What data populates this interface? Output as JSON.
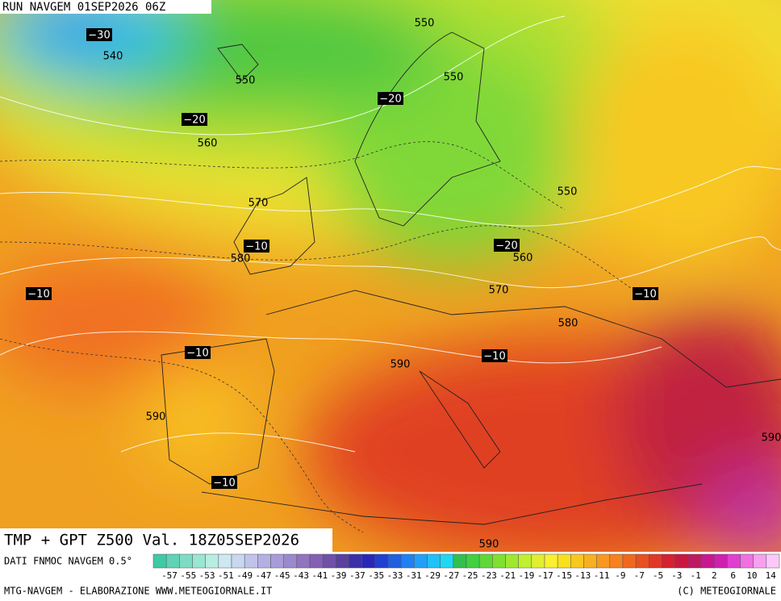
{
  "header": {
    "run": "RUN NAVGEM 01SEP2026 06Z"
  },
  "map": {
    "contour_labels": [
      "550",
      "−30",
      "540",
      "550",
      "550",
      "−20",
      "−20",
      "560",
      "570",
      "550",
      "−10",
      "580",
      "−20",
      "560",
      "−10",
      "570",
      "−10",
      "580",
      "−10",
      "−10",
      "590",
      "590",
      "590",
      "−10",
      "590"
    ]
  },
  "title": "TMP + GPT Z500 Val. 18Z05SEP2026",
  "legend": {
    "source": "DATI FNMOC NAVGEM 0.5°",
    "colors": [
      "#3fc9a6",
      "#5fd3b4",
      "#7edcc4",
      "#9be5d3",
      "#b8ede1",
      "#cde8f0",
      "#c8d8f0",
      "#c0c4ec",
      "#b4b0e4",
      "#a89cd8",
      "#9c88cc",
      "#9074c0",
      "#8460b4",
      "#7050a8",
      "#5a40a0",
      "#3c30a8",
      "#2828b8",
      "#2040d0",
      "#2060e0",
      "#2080f0",
      "#20a0f8",
      "#20c0f8",
      "#20d8f0",
      "#30c050",
      "#40d040",
      "#60d838",
      "#80e030",
      "#a0e830",
      "#c0f030",
      "#e0f030",
      "#f8f030",
      "#f8e020",
      "#f8c820",
      "#f8b020",
      "#f89820",
      "#f88020",
      "#f06820",
      "#e85020",
      "#e03828",
      "#d82030",
      "#c81840",
      "#c01860",
      "#c81890",
      "#d020b0",
      "#e040d0",
      "#f070e0",
      "#f8a0f0",
      "#fcc8f8"
    ],
    "ticks": [
      -57,
      -55,
      -53,
      -51,
      -49,
      -47,
      -45,
      -43,
      -41,
      -39,
      -37,
      -35,
      -33,
      -31,
      -29,
      -27,
      -25,
      -23,
      -21,
      -19,
      -17,
      -15,
      -13,
      -11,
      -9,
      -7,
      -5,
      -3,
      -1,
      2,
      6,
      10,
      14
    ]
  },
  "footer": {
    "left": "MTG-NAVGEM - ELABORAZIONE WWW.METEOGIORNALE.IT",
    "right": "(C) METEOGIORNALE"
  }
}
